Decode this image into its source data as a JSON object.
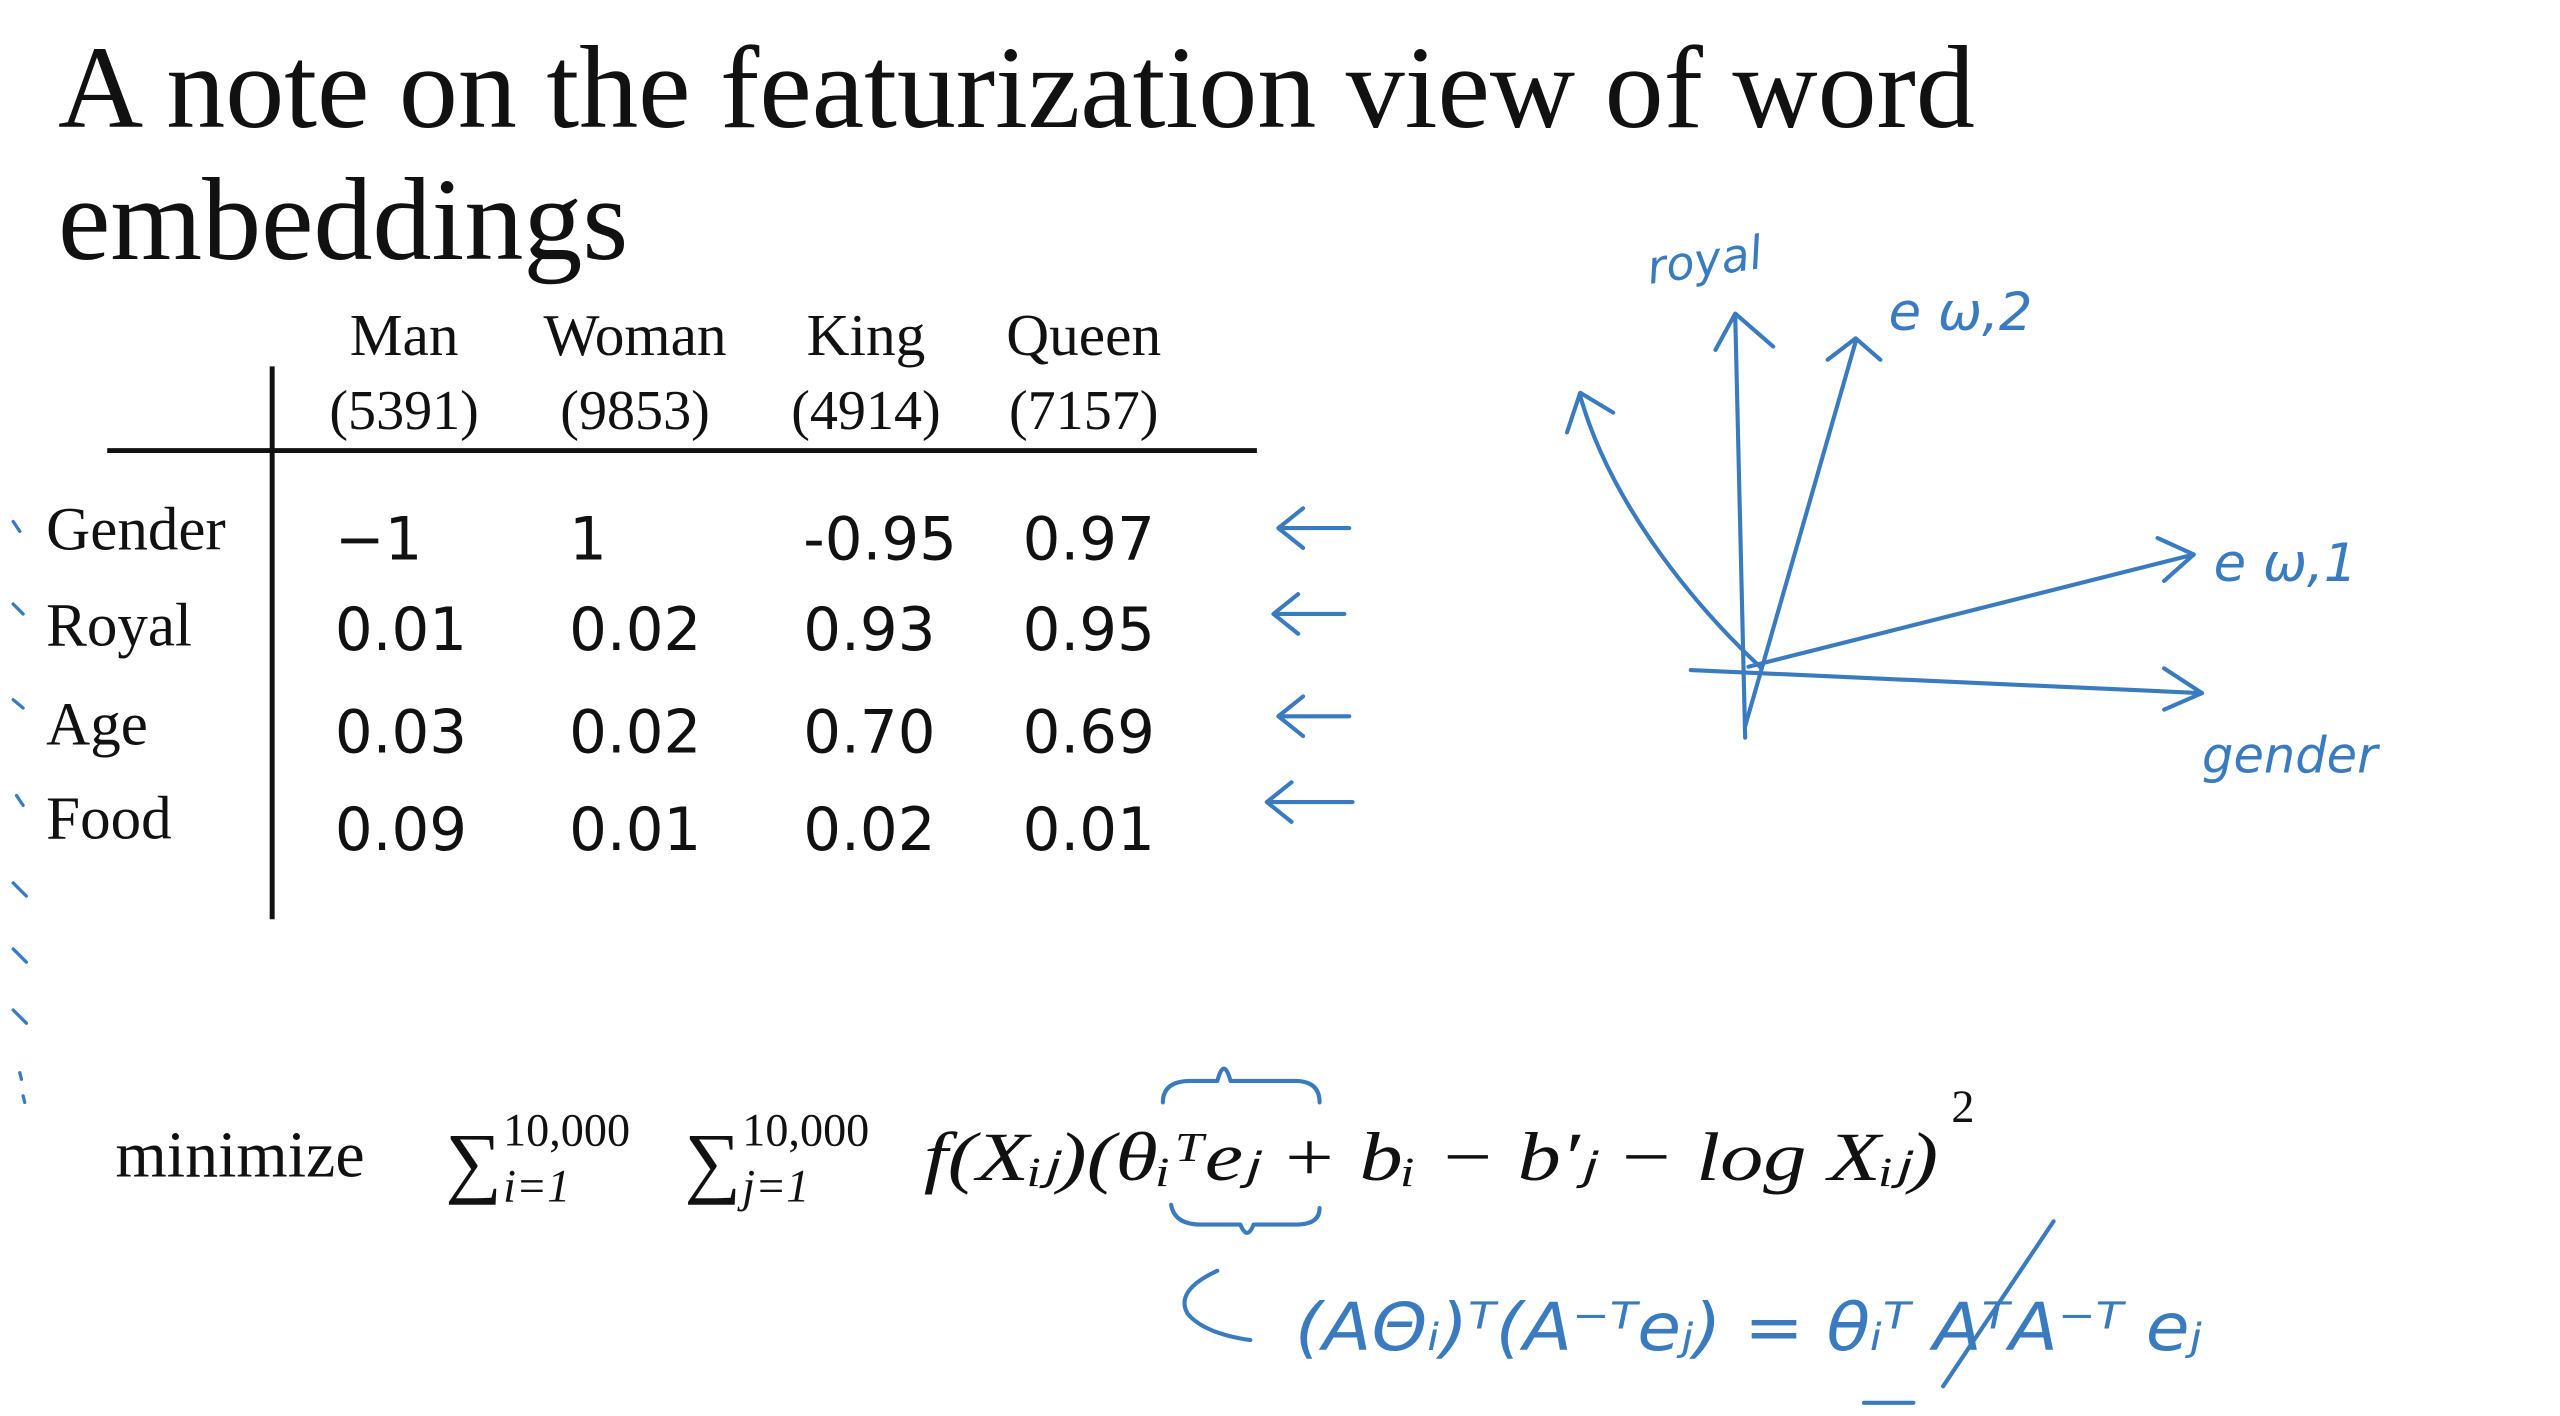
{
  "title": "A note on the featurization view of word embeddings",
  "table": {
    "columns": [
      {
        "word": "Man",
        "index": "(5391)"
      },
      {
        "word": "Woman",
        "index": "(9853)"
      },
      {
        "word": "King",
        "index": "(4914)"
      },
      {
        "word": "Queen",
        "index": "(7157)"
      }
    ],
    "rows": [
      {
        "feature": "Gender",
        "values": [
          "−1",
          "1",
          "-0.95",
          "0.97"
        ]
      },
      {
        "feature": "Royal",
        "values": [
          "0.01",
          "0.02",
          "0.93",
          "0.95"
        ]
      },
      {
        "feature": "Age",
        "values": [
          "0.03",
          "0.02",
          "0.70",
          "0.69"
        ]
      },
      {
        "feature": "Food",
        "values": [
          "0.09",
          "0.01",
          "0.02",
          "0.01"
        ]
      }
    ]
  },
  "formula": {
    "operator": "minimize",
    "sum_i": {
      "symbol": "∑",
      "upper": "10,000",
      "lower": "i=1"
    },
    "sum_j": {
      "symbol": "∑",
      "upper": "10,000",
      "lower": "j=1"
    },
    "body": "f(Xᵢⱼ)(θᵢᵀeⱼ + bᵢ − b′ⱼ − log Xᵢⱼ)",
    "exponent": "2"
  },
  "annotations": {
    "axis_royal": "royal",
    "vector_e2": "e ω,2",
    "vector_e1": "e ω,1",
    "axis_gender": "gender",
    "rewrite": "(AΘᵢ)ᵀ(A⁻ᵀeⱼ) = θᵢᵀ AᵀA⁻ᵀ eⱼ"
  }
}
